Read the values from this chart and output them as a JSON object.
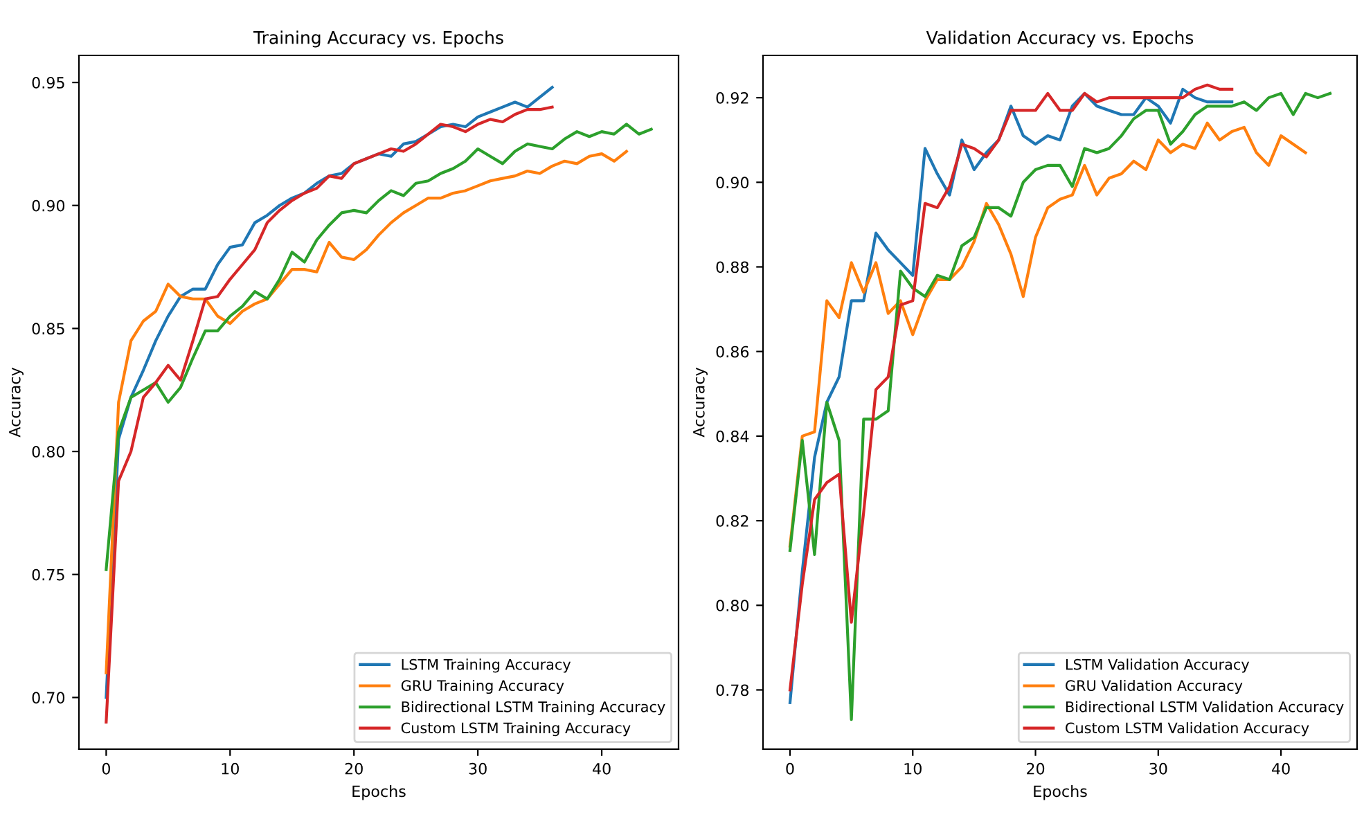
{
  "chart_data": [
    {
      "type": "line",
      "title": "Training Accuracy vs. Epochs",
      "xlabel": "Epochs",
      "ylabel": "Accuracy",
      "xlim": [
        -2.2,
        46.2
      ],
      "xticks": [
        0,
        10,
        20,
        30,
        40
      ],
      "ylim": [
        0.679,
        0.961
      ],
      "yticks": [
        {
          "value": 0.7,
          "label": "0.70"
        },
        0.75,
        {
          "value": 0.8,
          "label": "0.80"
        },
        0.85,
        {
          "value": 0.9,
          "label": "0.90"
        },
        0.95
      ],
      "legend": "lower right",
      "grid": false,
      "series": [
        {
          "name": "LSTM Training Accuracy",
          "color": "#1f77b4",
          "x": [
            0,
            1,
            2,
            3,
            4,
            5,
            6,
            7,
            8,
            9,
            10,
            11,
            12,
            13,
            14,
            15,
            16,
            17,
            18,
            19,
            20,
            21,
            22,
            23,
            24,
            25,
            26,
            27,
            28,
            29,
            30,
            31,
            32,
            33,
            34,
            35,
            36
          ],
          "values": [
            0.7,
            0.805,
            0.822,
            0.833,
            0.845,
            0.855,
            0.863,
            0.866,
            0.866,
            0.876,
            0.883,
            0.884,
            0.893,
            0.896,
            0.9,
            0.903,
            0.905,
            0.909,
            0.912,
            0.913,
            0.917,
            0.919,
            0.921,
            0.92,
            0.925,
            0.926,
            0.929,
            0.932,
            0.933,
            0.932,
            0.936,
            0.938,
            0.94,
            0.942,
            0.94,
            0.944,
            0.948
          ]
        },
        {
          "name": "GRU Training Accuracy",
          "color": "#ff7f0e",
          "x": [
            0,
            1,
            2,
            3,
            4,
            5,
            6,
            7,
            8,
            9,
            10,
            11,
            12,
            13,
            14,
            15,
            16,
            17,
            18,
            19,
            20,
            21,
            22,
            23,
            24,
            25,
            26,
            27,
            28,
            29,
            30,
            31,
            32,
            33,
            34,
            35,
            36,
            37,
            38,
            39,
            40,
            41,
            42
          ],
          "values": [
            0.71,
            0.82,
            0.845,
            0.853,
            0.857,
            0.868,
            0.863,
            0.862,
            0.862,
            0.855,
            0.852,
            0.857,
            0.86,
            0.862,
            0.868,
            0.874,
            0.874,
            0.873,
            0.885,
            0.879,
            0.878,
            0.882,
            0.888,
            0.893,
            0.897,
            0.9,
            0.903,
            0.903,
            0.905,
            0.906,
            0.908,
            0.91,
            0.911,
            0.912,
            0.914,
            0.913,
            0.916,
            0.918,
            0.917,
            0.92,
            0.921,
            0.918,
            0.922
          ]
        },
        {
          "name": "Bidirectional LSTM Training Accuracy",
          "color": "#2ca02c",
          "x": [
            0,
            1,
            2,
            3,
            4,
            5,
            6,
            7,
            8,
            9,
            10,
            11,
            12,
            13,
            14,
            15,
            16,
            17,
            18,
            19,
            20,
            21,
            22,
            23,
            24,
            25,
            26,
            27,
            28,
            29,
            30,
            31,
            32,
            33,
            34,
            35,
            36,
            37,
            38,
            39,
            40,
            41,
            42,
            43,
            44
          ],
          "values": [
            0.752,
            0.808,
            0.822,
            0.825,
            0.828,
            0.82,
            0.826,
            0.838,
            0.849,
            0.849,
            0.855,
            0.859,
            0.865,
            0.862,
            0.87,
            0.881,
            0.877,
            0.886,
            0.892,
            0.897,
            0.898,
            0.897,
            0.902,
            0.906,
            0.904,
            0.909,
            0.91,
            0.913,
            0.915,
            0.918,
            0.923,
            0.92,
            0.917,
            0.922,
            0.925,
            0.924,
            0.923,
            0.927,
            0.93,
            0.928,
            0.93,
            0.929,
            0.933,
            0.929,
            0.931
          ]
        },
        {
          "name": "Custom LSTM Training Accuracy",
          "color": "#d62728",
          "x": [
            0,
            1,
            2,
            3,
            4,
            5,
            6,
            7,
            8,
            9,
            10,
            11,
            12,
            13,
            14,
            15,
            16,
            17,
            18,
            19,
            20,
            21,
            22,
            23,
            24,
            25,
            26,
            27,
            28,
            29,
            30,
            31,
            32,
            33,
            34,
            35,
            36
          ],
          "values": [
            0.69,
            0.788,
            0.8,
            0.822,
            0.828,
            0.835,
            0.829,
            0.845,
            0.862,
            0.863,
            0.87,
            0.876,
            0.882,
            0.893,
            0.898,
            0.902,
            0.905,
            0.907,
            0.912,
            0.911,
            0.917,
            0.919,
            0.921,
            0.923,
            0.922,
            0.925,
            0.929,
            0.933,
            0.932,
            0.93,
            0.933,
            0.935,
            0.934,
            0.937,
            0.939,
            0.939,
            0.94
          ]
        }
      ]
    },
    {
      "type": "line",
      "title": "Validation Accuracy vs. Epochs",
      "xlabel": "Epochs",
      "ylabel": "Accuracy",
      "xlim": [
        -2.2,
        46.2
      ],
      "xticks": [
        0,
        10,
        20,
        30,
        40
      ],
      "ylim": [
        0.766,
        0.93
      ],
      "yticks": [
        0.78,
        {
          "value": 0.8,
          "label": "0.80"
        },
        0.82,
        0.84,
        0.86,
        0.88,
        {
          "value": 0.9,
          "label": "0.90"
        },
        0.92
      ],
      "legend": "lower right",
      "grid": false,
      "series": [
        {
          "name": "LSTM Validation Accuracy",
          "color": "#1f77b4",
          "x": [
            0,
            1,
            2,
            3,
            4,
            5,
            6,
            7,
            8,
            9,
            10,
            11,
            12,
            13,
            14,
            15,
            16,
            17,
            18,
            19,
            20,
            21,
            22,
            23,
            24,
            25,
            26,
            27,
            28,
            29,
            30,
            31,
            32,
            33,
            34,
            35,
            36
          ],
          "values": [
            0.777,
            0.808,
            0.835,
            0.848,
            0.854,
            0.872,
            0.872,
            0.888,
            0.884,
            0.881,
            0.878,
            0.908,
            0.902,
            0.897,
            0.91,
            0.903,
            0.907,
            0.91,
            0.918,
            0.911,
            0.909,
            0.911,
            0.91,
            0.918,
            0.921,
            0.918,
            0.917,
            0.916,
            0.916,
            0.92,
            0.918,
            0.914,
            0.922,
            0.92,
            0.919,
            0.919,
            0.919
          ]
        },
        {
          "name": "GRU Validation Accuracy",
          "color": "#ff7f0e",
          "x": [
            0,
            1,
            2,
            3,
            4,
            5,
            6,
            7,
            8,
            9,
            10,
            11,
            12,
            13,
            14,
            15,
            16,
            17,
            18,
            19,
            20,
            21,
            22,
            23,
            24,
            25,
            26,
            27,
            28,
            29,
            30,
            31,
            32,
            33,
            34,
            35,
            36,
            37,
            38,
            39,
            40,
            41,
            42
          ],
          "values": [
            0.814,
            0.84,
            0.841,
            0.872,
            0.868,
            0.881,
            0.874,
            0.881,
            0.869,
            0.872,
            0.864,
            0.872,
            0.877,
            0.877,
            0.88,
            0.886,
            0.895,
            0.89,
            0.883,
            0.873,
            0.887,
            0.894,
            0.896,
            0.897,
            0.904,
            0.897,
            0.901,
            0.902,
            0.905,
            0.903,
            0.91,
            0.907,
            0.909,
            0.908,
            0.914,
            0.91,
            0.912,
            0.913,
            0.907,
            0.904,
            0.911,
            0.909,
            0.907
          ]
        },
        {
          "name": "Bidirectional LSTM Validation Accuracy",
          "color": "#2ca02c",
          "x": [
            0,
            1,
            2,
            3,
            4,
            5,
            6,
            7,
            8,
            9,
            10,
            11,
            12,
            13,
            14,
            15,
            16,
            17,
            18,
            19,
            20,
            21,
            22,
            23,
            24,
            25,
            26,
            27,
            28,
            29,
            30,
            31,
            32,
            33,
            34,
            35,
            36,
            37,
            38,
            39,
            40,
            41,
            42,
            43,
            44
          ],
          "values": [
            0.813,
            0.839,
            0.812,
            0.848,
            0.839,
            0.773,
            0.844,
            0.844,
            0.846,
            0.879,
            0.875,
            0.873,
            0.878,
            0.877,
            0.885,
            0.887,
            0.894,
            0.894,
            0.892,
            0.9,
            0.903,
            0.904,
            0.904,
            0.899,
            0.908,
            0.907,
            0.908,
            0.911,
            0.915,
            0.917,
            0.917,
            0.909,
            0.912,
            0.916,
            0.918,
            0.918,
            0.918,
            0.919,
            0.917,
            0.92,
            0.921,
            0.916,
            0.921,
            0.92,
            0.921
          ]
        },
        {
          "name": "Custom LSTM Validation Accuracy",
          "color": "#d62728",
          "x": [
            0,
            1,
            2,
            3,
            4,
            5,
            6,
            7,
            8,
            9,
            10,
            11,
            12,
            13,
            14,
            15,
            16,
            17,
            18,
            19,
            20,
            21,
            22,
            23,
            24,
            25,
            26,
            27,
            28,
            29,
            30,
            31,
            32,
            33,
            34,
            35,
            36
          ],
          "values": [
            0.78,
            0.805,
            0.825,
            0.829,
            0.831,
            0.796,
            0.822,
            0.851,
            0.854,
            0.871,
            0.872,
            0.895,
            0.894,
            0.899,
            0.909,
            0.908,
            0.906,
            0.91,
            0.917,
            0.917,
            0.917,
            0.921,
            0.917,
            0.917,
            0.921,
            0.919,
            0.92,
            0.92,
            0.92,
            0.92,
            0.92,
            0.92,
            0.92,
            0.922,
            0.923,
            0.922,
            0.922
          ]
        }
      ]
    }
  ]
}
